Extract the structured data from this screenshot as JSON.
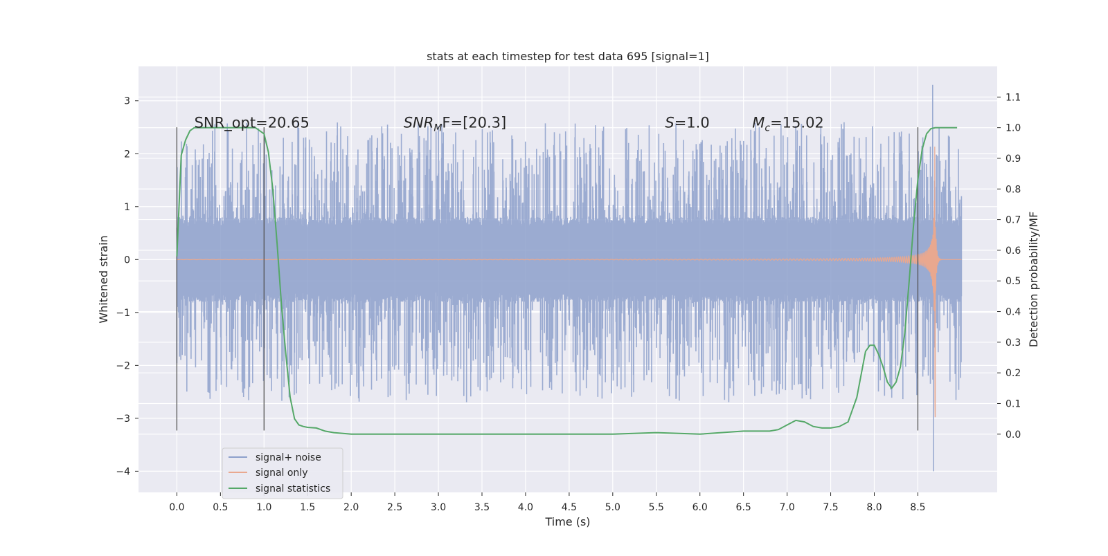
{
  "chart_data": {
    "type": "line",
    "title": "stats at each timestep for test data 695 [signal=1]",
    "xlabel": "Time (s)",
    "ylabel": "Whitened strain",
    "ylabel_right": "Detection probability/MF",
    "xlim": [
      -0.44,
      9.41
    ],
    "ylim": [
      -4.4,
      3.65
    ],
    "ylim_right": [
      -0.19,
      1.2
    ],
    "xticks": [
      0.0,
      0.5,
      1.0,
      1.5,
      2.0,
      2.5,
      3.0,
      3.5,
      4.0,
      4.5,
      5.0,
      5.5,
      6.0,
      6.5,
      7.0,
      7.5,
      8.0,
      8.5
    ],
    "xtick_labels": [
      "0.0",
      "0.5",
      "1.0",
      "1.5",
      "2.0",
      "2.5",
      "3.0",
      "3.5",
      "4.0",
      "4.5",
      "5.0",
      "5.5",
      "6.0",
      "6.5",
      "7.0",
      "7.5",
      "8.0",
      "8.5"
    ],
    "yticks": [
      -4,
      -3,
      -2,
      -1,
      0,
      1,
      2,
      3
    ],
    "ytick_labels": [
      "−4",
      "−3",
      "−2",
      "−1",
      "0",
      "1",
      "2",
      "3"
    ],
    "yticks_right": [
      0.0,
      0.1,
      0.2,
      0.3,
      0.4,
      0.5,
      0.6,
      0.7,
      0.8,
      0.9,
      1.0,
      1.1
    ],
    "ytick_right_labels": [
      "0.0",
      "0.1",
      "0.2",
      "0.3",
      "0.4",
      "0.5",
      "0.6",
      "0.7",
      "0.8",
      "0.9",
      "1.0",
      "1.1"
    ],
    "annotations": [
      {
        "id": "snr-opt",
        "text": "SNR_opt=20.65",
        "x": 0.2,
        "y": 2.6
      },
      {
        "id": "snr-mf",
        "prefix": "SNR",
        "sub": "M",
        "suffix": "F=[20.3]",
        "x": 2.6,
        "y": 2.6
      },
      {
        "id": "s-val",
        "prefix": "S",
        "sub": "",
        "suffix": "=1.0",
        "x": 5.6,
        "y": 2.6
      },
      {
        "id": "mc-val",
        "prefix": "M",
        "sub": "c",
        "suffix": "=15.02",
        "x": 6.6,
        "y": 2.6
      }
    ],
    "vlines": [
      {
        "x": 0.0,
        "ymin": -3.23,
        "ymax": 2.5
      },
      {
        "x": 1.0,
        "ymin": -3.23,
        "ymax": 2.5
      },
      {
        "x": 8.5,
        "ymin": -3.23,
        "ymax": 2.5
      }
    ],
    "series": [
      {
        "name": "signal+ noise",
        "color": "#8da0cb",
        "kind": "noise",
        "t_start": 0.0,
        "t_end": 9.0,
        "core_amplitude": 0.8,
        "spike_max": 2.6,
        "spike_min": -2.7,
        "extreme_point": {
          "x": 8.68,
          "y": -4.0
        },
        "extreme_peak": {
          "x": 8.67,
          "y": 3.3
        }
      },
      {
        "name": "signal only",
        "color": "#e9a88f",
        "kind": "chirp",
        "t_start": 0.0,
        "t_end": 9.0,
        "merger_time": 8.7,
        "peak_amplitude": 3.0
      },
      {
        "name": "signal statistics",
        "color": "#55a868",
        "kind": "probability",
        "x": [
          0.0,
          0.05,
          0.1,
          0.15,
          0.2,
          0.3,
          0.4,
          0.5,
          0.6,
          0.7,
          0.8,
          0.9,
          0.95,
          1.0,
          1.05,
          1.1,
          1.15,
          1.2,
          1.25,
          1.3,
          1.35,
          1.4,
          1.45,
          1.5,
          1.6,
          1.7,
          1.8,
          2.0,
          2.5,
          3.0,
          3.5,
          4.0,
          4.5,
          5.0,
          5.5,
          6.0,
          6.5,
          6.8,
          6.9,
          7.0,
          7.1,
          7.2,
          7.3,
          7.4,
          7.5,
          7.6,
          7.7,
          7.8,
          7.9,
          7.95,
          8.0,
          8.05,
          8.1,
          8.15,
          8.2,
          8.25,
          8.3,
          8.35,
          8.4,
          8.45,
          8.5,
          8.55,
          8.6,
          8.65,
          8.7,
          8.8,
          8.9,
          8.95
        ],
        "y": [
          0.58,
          0.91,
          0.96,
          0.99,
          1.0,
          1.0,
          1.0,
          1.0,
          1.0,
          1.0,
          1.0,
          1.0,
          0.99,
          0.98,
          0.92,
          0.8,
          0.62,
          0.42,
          0.26,
          0.12,
          0.05,
          0.03,
          0.025,
          0.022,
          0.02,
          0.01,
          0.005,
          0.0,
          0.0,
          0.0,
          0.0,
          0.0,
          0.0,
          0.0,
          0.005,
          0.0,
          0.01,
          0.01,
          0.015,
          0.03,
          0.045,
          0.04,
          0.025,
          0.02,
          0.02,
          0.025,
          0.04,
          0.12,
          0.27,
          0.29,
          0.29,
          0.26,
          0.22,
          0.17,
          0.15,
          0.17,
          0.22,
          0.33,
          0.5,
          0.68,
          0.83,
          0.93,
          0.98,
          0.997,
          1.0,
          1.0,
          1.0,
          1.0
        ]
      }
    ],
    "legend": {
      "placement": "lower-left",
      "entries": [
        "signal+ noise",
        "signal only",
        "signal statistics"
      ]
    }
  }
}
